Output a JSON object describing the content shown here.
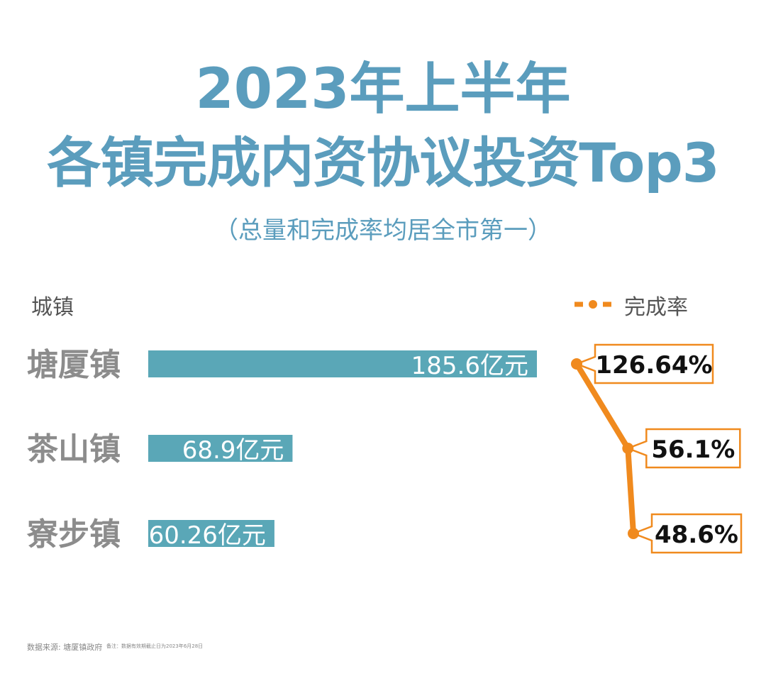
{
  "title_line1": "2023年上半年",
  "title_line2": "各镇完成内资协议投资Top3",
  "subtitle": "（总量和完成率均居全市第一）",
  "column_header": "城镇",
  "legend_label": "完成率",
  "colors": {
    "title": "#5b9dbd",
    "bar": "#5aa7b7",
    "rate": "#f08a1e",
    "category_text": "#8c8c8c"
  },
  "chart_data": {
    "type": "bar",
    "orientation": "horizontal",
    "categories": [
      "塘厦镇",
      "茶山镇",
      "寮步镇"
    ],
    "series": [
      {
        "values": [
          185.6,
          68.9,
          60.26
        ],
        "labels": [
          "185.6亿元",
          "68.9亿元",
          "60.26亿元"
        ]
      },
      {
        "name": "完成率",
        "type": "line",
        "values": [
          126.64,
          56.1,
          48.6
        ],
        "labels": [
          "126.64%",
          "56.1%",
          "48.6%"
        ]
      }
    ],
    "grid": false,
    "legend": "top-right"
  },
  "source": "数据来源: 塘厦镇政府",
  "note": "备注：数据有效期截止日为2023年6月28日"
}
